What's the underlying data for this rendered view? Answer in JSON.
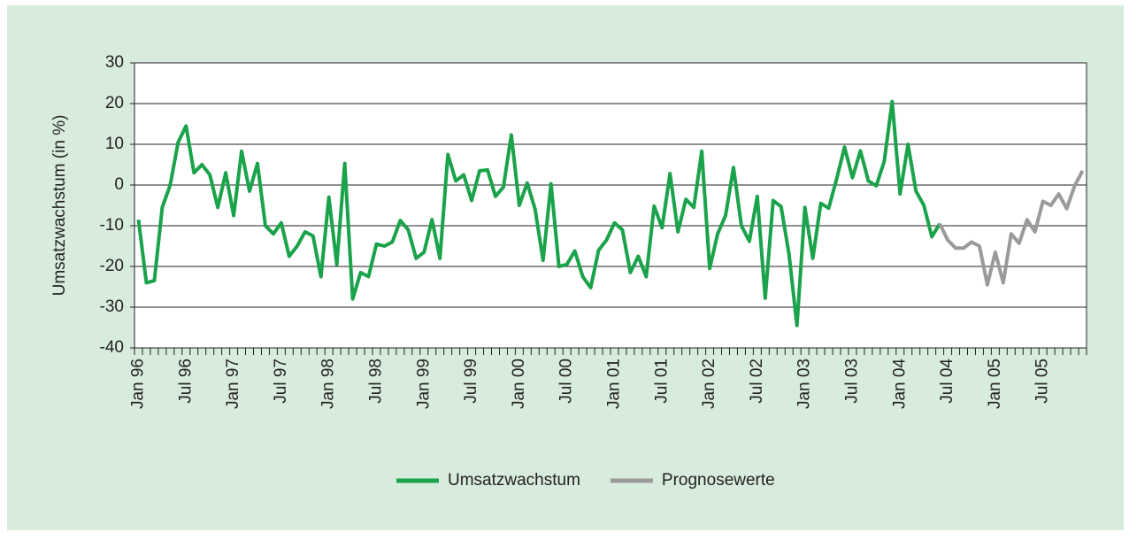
{
  "chart_data": {
    "type": "line",
    "ylabel": "Umsatzwachstum (in %)",
    "categories": [
      "Jan 96",
      null,
      null,
      null,
      null,
      null,
      "Jul 96",
      null,
      null,
      null,
      null,
      null,
      "Jan 97",
      null,
      null,
      null,
      null,
      null,
      "Jul 97",
      null,
      null,
      null,
      null,
      null,
      "Jan 98",
      null,
      null,
      null,
      null,
      null,
      "Jul 98",
      null,
      null,
      null,
      null,
      null,
      "Jan 99",
      null,
      null,
      null,
      null,
      null,
      "Jul 99",
      null,
      null,
      null,
      null,
      null,
      "Jan 00",
      null,
      null,
      null,
      null,
      null,
      "Jul 00",
      null,
      null,
      null,
      null,
      null,
      "Jan 01",
      null,
      null,
      null,
      null,
      null,
      "Jul 01",
      null,
      null,
      null,
      null,
      null,
      "Jan 02",
      null,
      null,
      null,
      null,
      null,
      "Jul 02",
      null,
      null,
      null,
      null,
      null,
      "Jan 03",
      null,
      null,
      null,
      null,
      null,
      "Jul 03",
      null,
      null,
      null,
      null,
      null,
      "Jan 04",
      null,
      null,
      null,
      null,
      null,
      "Jul 04",
      null,
      null,
      null,
      null,
      null,
      "Jan 05",
      null,
      null,
      null,
      null,
      null,
      "Jul 05",
      null,
      null,
      null,
      null,
      null
    ],
    "series": [
      {
        "name": "Umsatzwachstum",
        "color": "#1aa34a",
        "values": [
          -8.5,
          -24,
          -23.5,
          -5.5,
          0,
          10.5,
          14.5,
          3,
          5,
          2.5,
          -5.5,
          3,
          -7.5,
          8.3,
          -1.5,
          5.3,
          -10,
          -12,
          -9.3,
          -17.5,
          -15,
          -11.5,
          -12.5,
          -22.5,
          -3,
          -19.5,
          5.3,
          -28,
          -21.5,
          -22.5,
          -14.5,
          -15,
          -14,
          -8.7,
          -11,
          -18,
          -16.5,
          -8.5,
          -18,
          7.5,
          1,
          2.5,
          -3.8,
          3.5,
          3.7,
          -2.8,
          -0.5,
          12.3,
          -5,
          0.5,
          -6,
          -18.5,
          0.3,
          -20,
          -19.5,
          -16.2,
          -22.5,
          -25.2,
          -16,
          -13.5,
          -9.3,
          -11,
          -21.5,
          -17.5,
          -22.5,
          -5.2,
          -10.5,
          2.8,
          -11.5,
          -3.5,
          -5.5,
          8.3,
          -20.5,
          -12,
          -7.5,
          4.3,
          -10,
          -13.8,
          -2.8,
          -27.8,
          -3.8,
          -5.3,
          -17,
          -34.5,
          -5.5,
          -18,
          -4.5,
          -5.7,
          1.5,
          9.3,
          1.8,
          8.4,
          1,
          -0.2,
          5.8,
          20.5,
          -2.2,
          10,
          -1.5,
          -5,
          -12.7,
          -9.5,
          null,
          null,
          null,
          null,
          null,
          null,
          null,
          null,
          null,
          null,
          null,
          null,
          null,
          null,
          null,
          null,
          null,
          null
        ]
      },
      {
        "name": "Prognosewerte",
        "color": "#9a9a9a",
        "values": [
          null,
          null,
          null,
          null,
          null,
          null,
          null,
          null,
          null,
          null,
          null,
          null,
          null,
          null,
          null,
          null,
          null,
          null,
          null,
          null,
          null,
          null,
          null,
          null,
          null,
          null,
          null,
          null,
          null,
          null,
          null,
          null,
          null,
          null,
          null,
          null,
          null,
          null,
          null,
          null,
          null,
          null,
          null,
          null,
          null,
          null,
          null,
          null,
          null,
          null,
          null,
          null,
          null,
          null,
          null,
          null,
          null,
          null,
          null,
          null,
          null,
          null,
          null,
          null,
          null,
          null,
          null,
          null,
          null,
          null,
          null,
          null,
          null,
          null,
          null,
          null,
          null,
          null,
          null,
          null,
          null,
          null,
          null,
          null,
          null,
          null,
          null,
          null,
          null,
          null,
          null,
          null,
          null,
          null,
          null,
          null,
          null,
          null,
          null,
          null,
          null,
          -9.5,
          -13.5,
          -15.5,
          -15.5,
          -14,
          -15,
          -24.5,
          -16.5,
          -24,
          -12,
          -14.3,
          -8.5,
          -11.5,
          -4,
          -5,
          -2.2,
          -5.8,
          -0.2,
          3.5
        ]
      }
    ],
    "ylim": [
      -40,
      30
    ],
    "yticks": [
      -40,
      -30,
      -20,
      -10,
      0,
      10,
      20,
      30
    ],
    "grid": true,
    "legend": "bottom"
  }
}
